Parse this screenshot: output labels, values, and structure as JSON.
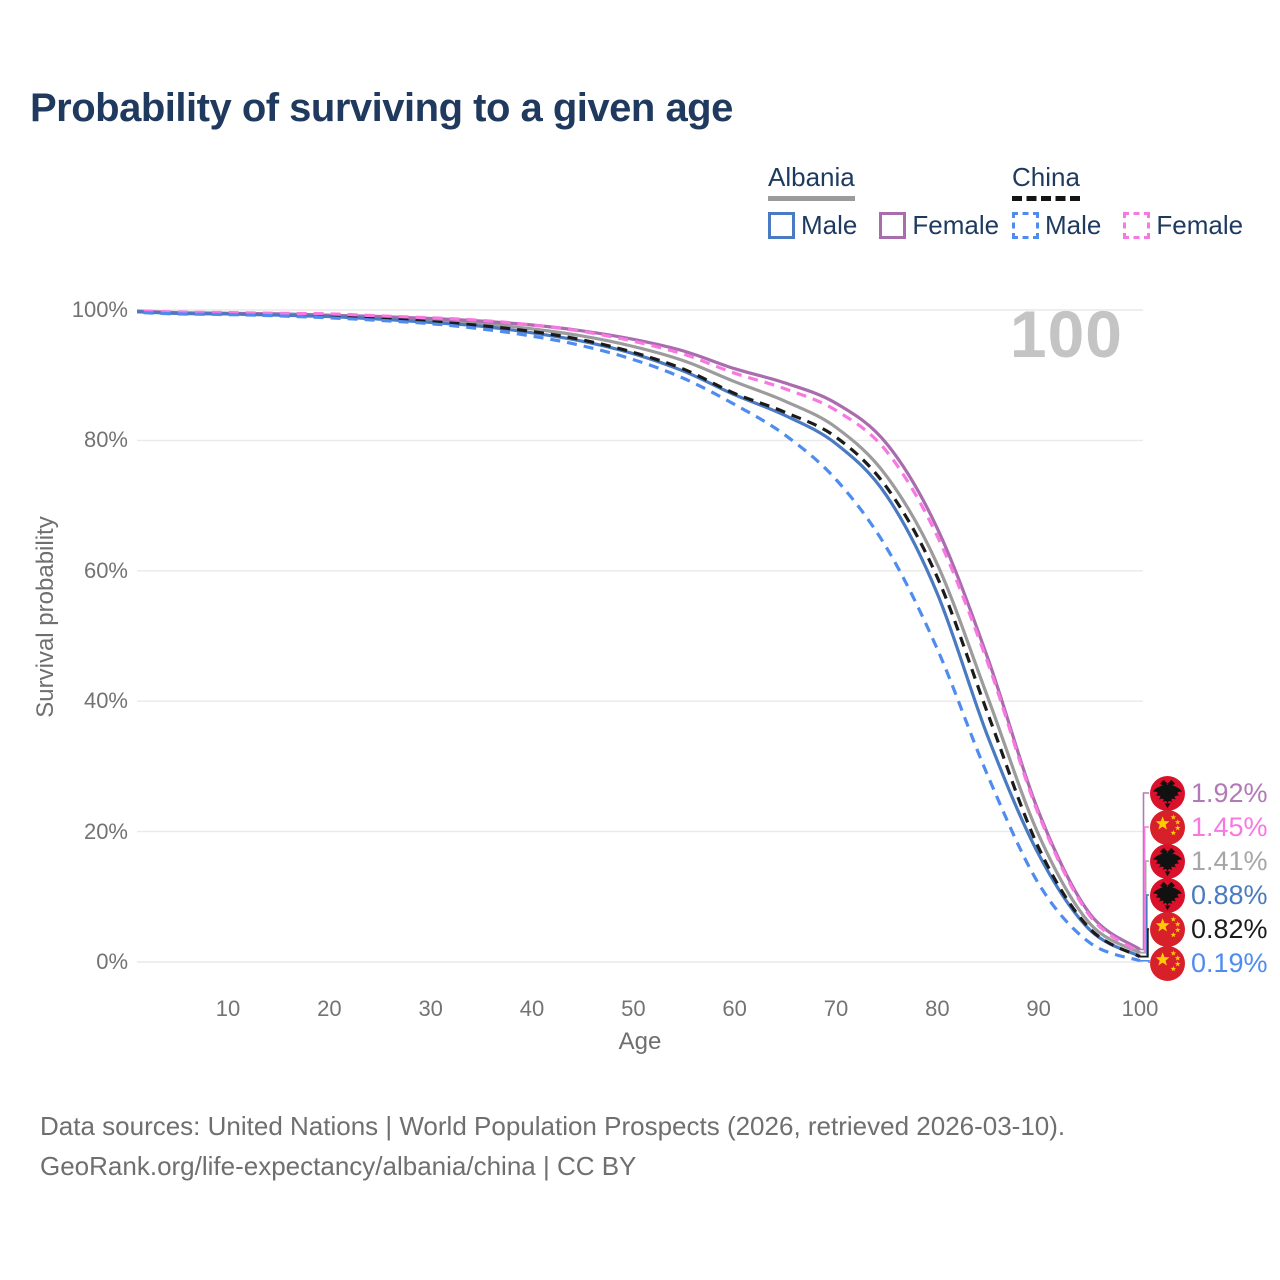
{
  "title": "Probability of surviving to a given age",
  "watermark_age": "100",
  "legend": {
    "groups": [
      {
        "label": "Albania",
        "underline": "solid",
        "underline_color": "#9b9b9b",
        "items": [
          {
            "label": "Male",
            "color": "#4a7ac1",
            "dashed": false
          },
          {
            "label": "Female",
            "color": "#a96cad",
            "dashed": false
          }
        ]
      },
      {
        "label": "China",
        "underline": "dashed",
        "underline_color": "#141414",
        "items": [
          {
            "label": "Male",
            "color": "#4f8cf0",
            "dashed": true
          },
          {
            "label": "Female",
            "color": "#f878e2",
            "dashed": true
          }
        ]
      }
    ]
  },
  "axes": {
    "y_label": "Survival probability",
    "x_label": "Age",
    "y_ticks": [
      {
        "label": "100%",
        "value": 100
      },
      {
        "label": "80%",
        "value": 80
      },
      {
        "label": "60%",
        "value": 60
      },
      {
        "label": "40%",
        "value": 40
      },
      {
        "label": "20%",
        "value": 20
      },
      {
        "label": "0%",
        "value": 0
      }
    ],
    "x_ticks": [
      10,
      20,
      30,
      40,
      50,
      60,
      70,
      80,
      90,
      100
    ]
  },
  "chart_data": {
    "type": "line",
    "title": "Probability of surviving to a given age",
    "xlabel": "Age",
    "ylabel": "Survival probability",
    "xlim": [
      0,
      100
    ],
    "ylim": [
      0,
      100
    ],
    "grid": "horizontal",
    "legend_position": "top-right",
    "x": [
      0,
      5,
      10,
      15,
      20,
      25,
      30,
      35,
      40,
      45,
      50,
      55,
      60,
      65,
      70,
      75,
      80,
      85,
      90,
      95,
      100
    ],
    "series": [
      {
        "name": "Albania Both sexes",
        "country": "Albania",
        "sex": "All",
        "style": "solid",
        "color": "#9c9c9c",
        "end_label": "1.41%",
        "end_value_pct": 1.41,
        "values": [
          99.9,
          99.5,
          99.4,
          99.3,
          99.1,
          98.8,
          98.4,
          97.9,
          97.1,
          96.0,
          94.4,
          92.2,
          89.0,
          86.0,
          82.0,
          74.5,
          61.0,
          40.5,
          19.5,
          6.0,
          1.41
        ]
      },
      {
        "name": "Albania Female",
        "country": "Albania",
        "sex": "Female",
        "style": "solid",
        "color": "#a96cad",
        "end_label": "1.92%",
        "end_value_pct": 1.92,
        "values": [
          99.9,
          99.6,
          99.5,
          99.4,
          99.2,
          99.0,
          98.7,
          98.3,
          97.7,
          96.8,
          95.5,
          93.7,
          91.0,
          88.8,
          85.7,
          79.5,
          66.5,
          46.5,
          23.0,
          7.5,
          1.92
        ]
      },
      {
        "name": "Albania Male",
        "country": "Albania",
        "sex": "Male",
        "style": "solid",
        "color": "#4a7ac1",
        "end_label": "0.88%",
        "end_value_pct": 0.88,
        "values": [
          99.8,
          99.5,
          99.4,
          99.2,
          99.0,
          98.6,
          98.1,
          97.5,
          96.5,
          95.2,
          93.3,
          90.6,
          87.0,
          83.8,
          79.5,
          71.5,
          56.5,
          34.5,
          16.5,
          5.0,
          0.88
        ]
      },
      {
        "name": "China Both sexes",
        "country": "China",
        "sex": "All",
        "style": "dashed",
        "color": "#1b1b1b",
        "end_label": "0.82%",
        "end_value_pct": 0.82,
        "values": [
          99.8,
          99.5,
          99.4,
          99.2,
          99.0,
          98.7,
          98.2,
          97.6,
          96.7,
          95.4,
          93.5,
          90.9,
          87.2,
          84.3,
          80.5,
          72.8,
          59.0,
          38.0,
          17.5,
          5.2,
          0.82
        ]
      },
      {
        "name": "China Female",
        "country": "China",
        "sex": "Female",
        "style": "dashed",
        "color": "#f878e2",
        "end_label": "1.45%",
        "end_value_pct": 1.45,
        "values": [
          99.9,
          99.7,
          99.6,
          99.5,
          99.4,
          99.1,
          98.8,
          98.4,
          97.7,
          96.7,
          95.2,
          93.2,
          90.3,
          87.9,
          84.6,
          78.3,
          65.3,
          45.8,
          22.6,
          7.2,
          1.45
        ]
      },
      {
        "name": "China Male",
        "country": "China",
        "sex": "Male",
        "style": "dashed",
        "color": "#4f8cf0",
        "end_label": "0.19%",
        "end_value_pct": 0.19,
        "values": [
          99.7,
          99.4,
          99.3,
          99.1,
          98.8,
          98.4,
          97.9,
          97.1,
          96.0,
          94.5,
          92.4,
          89.5,
          85.5,
          80.8,
          74.0,
          63.5,
          48.0,
          28.5,
          12.0,
          3.0,
          0.19
        ]
      }
    ]
  },
  "end_labels": [
    {
      "flag": "albania",
      "series": "Albania Female",
      "label": "1.92%",
      "color": "#b279b7"
    },
    {
      "flag": "china",
      "series": "China Female",
      "label": "1.45%",
      "color": "#f878e2"
    },
    {
      "flag": "albania",
      "series": "Albania Both sexes",
      "label": "1.41%",
      "color": "#a6a6a6"
    },
    {
      "flag": "albania",
      "series": "Albania Male",
      "label": "0.88%",
      "color": "#4a7ac1"
    },
    {
      "flag": "china",
      "series": "China Both sexes",
      "label": "0.82%",
      "color": "#1b1b1b"
    },
    {
      "flag": "china",
      "series": "China Male",
      "label": "0.19%",
      "color": "#4f8cf0"
    }
  ],
  "flag_colors": {
    "albania_red": "#d9112b",
    "china_red": "#d7202a",
    "star_yellow": "#ffcc00",
    "eagle_black": "#111111"
  },
  "footer": {
    "line1": "Data sources: United Nations | World Population Prospects (2026, retrieved 2026-03-10).",
    "line2": "GeoRank.org/life-expectancy/albania/china | CC BY"
  }
}
